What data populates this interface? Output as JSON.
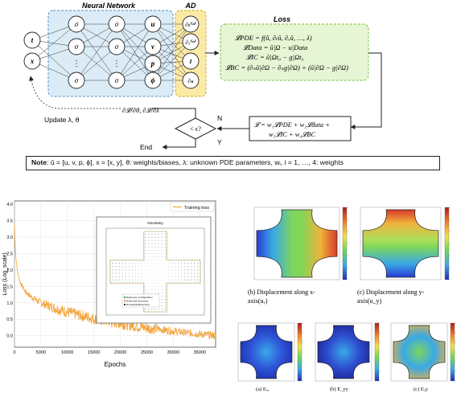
{
  "pinn_diagram": {
    "inputs": [
      "t",
      "x"
    ],
    "nn_title": "Neural Network",
    "hidden_symbol": "σ",
    "vdots": "⋮",
    "outputs": [
      "u",
      "v",
      "p",
      "ϕ"
    ],
    "ad_title": "AD",
    "ad_ops": [
      "∂ₜ⁽ⁿ⁾",
      "∂ₓ⁽ⁿ⁾",
      "I",
      "∂ₙ"
    ],
    "loss_title": "Loss",
    "loss_eqs": [
      "𝓛PDE = f(û, ∂ₜû, ∂ₓû, …, λ)",
      "𝓛Data = û|Ω − u|Data",
      "𝓛IC = û|Ωt₀ − g|Ωt₀",
      "𝓛BC = (∂ₙû|∂Ω − ∂ₙg|∂Ω) + (û|∂Ω − g|∂Ω)"
    ],
    "grad_label": "∂𝓛/∂θ, ∂𝓛/∂λ",
    "update_label": "Update λ, θ",
    "decision": "< ϵ?",
    "branch_no": "N",
    "branch_yes": "Y",
    "end_label": "End",
    "total_loss_line1": "𝓛 = w₁𝓛PDE + w₂𝓛data +",
    "total_loss_line2": "w₃𝓛IC + w₄𝓛BC",
    "note_label": "Note",
    "note_text": ": û = [u, v, p, ϕ], x = [x, y], θ: weights/biases, λ: unknown PDE parameters, wᵢ, i = 1, …, 4: weights",
    "colors": {
      "nn_fill": "#dcecf7",
      "ad_fill": "#fbeaa6",
      "loss_fill": "#e6f5d3"
    }
  },
  "training_chart": {
    "legend": "Training loss",
    "xlabel": "Epochs",
    "ylabel": "Loss (Log_scale)",
    "xticks": [
      "0",
      "5000",
      "10000",
      "15000",
      "20000",
      "25000",
      "30000",
      "35000"
    ],
    "yticks": [
      "0.0",
      "0.5",
      "1.0",
      "1.5",
      "2.0",
      "2.5",
      "3.0",
      "3.5",
      "4.0"
    ],
    "inset_title": "Geometry",
    "inset_legend": [
      "Reference Configuration",
      "Deformed Geometry",
      "Normal Displacement"
    ],
    "color": "#f2a33a"
  },
  "chart_data": {
    "type": "line",
    "title": "",
    "xlabel": "Epochs",
    "ylabel": "Loss (Log_scale)",
    "xlim": [
      0,
      38000
    ],
    "ylim": [
      -0.35,
      4.1
    ],
    "series": [
      {
        "name": "Training loss",
        "x": [
          0,
          200,
          500,
          1000,
          2000,
          3000,
          4000,
          5000,
          7500,
          10000,
          12500,
          15000,
          17500,
          20000,
          22500,
          25000,
          27500,
          30000,
          32500,
          35000,
          37500,
          38000
        ],
        "y": [
          3.4,
          2.5,
          2.0,
          1.65,
          1.35,
          1.2,
          1.1,
          1.0,
          0.85,
          0.72,
          0.62,
          0.52,
          0.44,
          0.37,
          0.3,
          0.24,
          0.19,
          0.14,
          0.09,
          0.05,
          0.01,
          0.0
        ]
      }
    ]
  },
  "contours": {
    "panel_b_caption": "(b)   Displacement   along   x-",
    "panel_b_caption2": "axis(uₓ)",
    "panel_c_caption": "(c)   Displacement   along   y-",
    "panel_c_caption2": "axis(u_y)",
    "small_captions": [
      "(a) Eₓₓ",
      "(b) E_yy",
      "(c) Eₓy"
    ]
  }
}
